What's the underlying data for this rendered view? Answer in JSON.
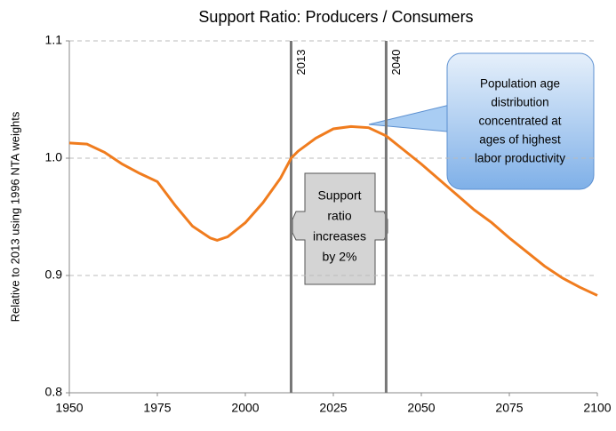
{
  "chart_data": {
    "type": "line",
    "title": "Support Ratio: Producers / Consumers",
    "ylabel": "Relative to 2013 using 1996 NTA weights",
    "x": [
      1950,
      1955,
      1960,
      1965,
      1970,
      1975,
      1980,
      1985,
      1990,
      1992,
      1995,
      2000,
      2005,
      2010,
      2013,
      2015,
      2020,
      2025,
      2030,
      2035,
      2040,
      2045,
      2050,
      2055,
      2060,
      2065,
      2070,
      2075,
      2080,
      2085,
      2090,
      2095,
      2100
    ],
    "series": [
      {
        "name": "Support ratio",
        "color": "#f07c1e",
        "values": [
          1.013,
          1.012,
          1.005,
          0.995,
          0.987,
          0.98,
          0.96,
          0.942,
          0.932,
          0.93,
          0.933,
          0.945,
          0.962,
          0.983,
          1.0,
          1.006,
          1.017,
          1.025,
          1.027,
          1.026,
          1.019,
          1.007,
          0.995,
          0.982,
          0.969,
          0.956,
          0.945,
          0.932,
          0.92,
          0.908,
          0.898,
          0.89,
          0.883
        ]
      }
    ],
    "xlim": [
      1950,
      2100
    ],
    "xticks": [
      1950,
      1975,
      2000,
      2025,
      2050,
      2075,
      2100
    ],
    "ylim": [
      0.8,
      1.1
    ],
    "yticks": [
      0.8,
      0.9,
      {
        "value": 1,
        "label": "1.0"
      },
      1.1
    ],
    "grid": true,
    "vlines": [
      2013,
      2040
    ],
    "callout": [
      "Population age",
      "distribution",
      "concentrated at",
      "ages of highest",
      "labor productivity"
    ],
    "box_note": [
      "Support",
      "ratio",
      "increases",
      "by 2%"
    ]
  }
}
